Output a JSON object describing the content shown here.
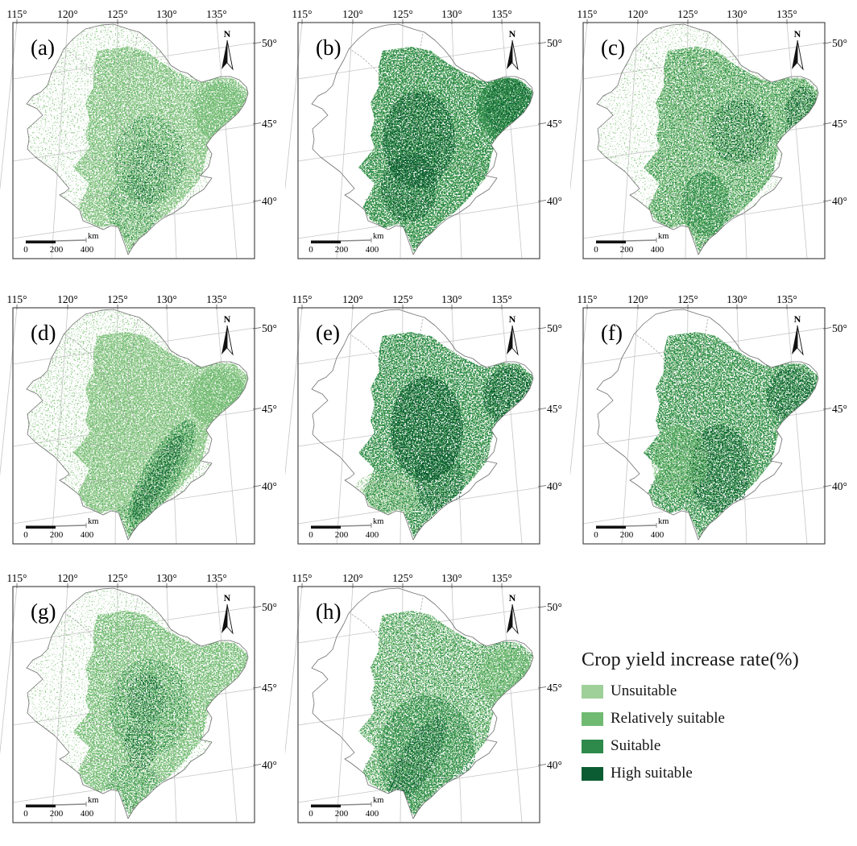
{
  "figure": {
    "panels": [
      {
        "label": "(a)"
      },
      {
        "label": "(b)"
      },
      {
        "label": "(c)"
      },
      {
        "label": "(d)"
      },
      {
        "label": "(e)"
      },
      {
        "label": "(f)"
      },
      {
        "label": "(g)"
      },
      {
        "label": "(h)"
      }
    ],
    "axis": {
      "longitude_labels": [
        "115°",
        "120°",
        "125°",
        "130°",
        "135°"
      ],
      "latitude_labels": [
        "50°",
        "45°",
        "40°"
      ]
    },
    "north_label": "N",
    "scalebar": {
      "labels": [
        "0",
        "200",
        "400"
      ],
      "unit": "km"
    },
    "legend": {
      "title": "Crop yield increase rate(%)",
      "items": [
        {
          "label": "Unsuitable",
          "color": "#9fd099"
        },
        {
          "label": "Relatively suitable",
          "color": "#70ba72"
        },
        {
          "label": "Suitable",
          "color": "#2d8a4a"
        },
        {
          "label": "High suitable",
          "color": "#0b5c32"
        }
      ]
    }
  }
}
